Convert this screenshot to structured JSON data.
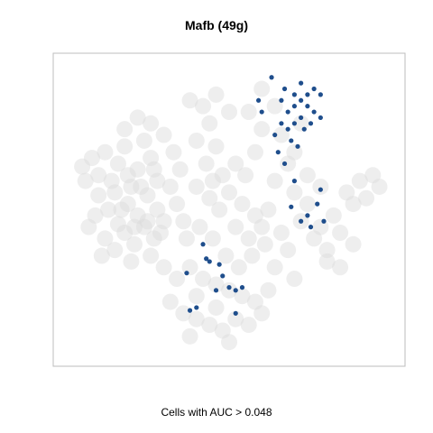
{
  "chart_data": {
    "type": "scatter",
    "title": "Mafb (49g)",
    "xlabel": "Cells with AUC > 0.048",
    "ylabel": "",
    "xlim": [
      0,
      1
    ],
    "ylim": [
      0,
      1
    ],
    "grid": false,
    "legend": "none",
    "colors": {
      "background_cells": "#d9d9d9",
      "highlight_cells": "#1f4e8c",
      "frame": "#bdbdbd"
    },
    "series": [
      {
        "role": "background",
        "points": [
          [
            0.05,
            0.65
          ],
          [
            0.08,
            0.68
          ],
          [
            0.1,
            0.62
          ],
          [
            0.12,
            0.7
          ],
          [
            0.14,
            0.6
          ],
          [
            0.16,
            0.66
          ],
          [
            0.18,
            0.72
          ],
          [
            0.2,
            0.58
          ],
          [
            0.22,
            0.64
          ],
          [
            0.24,
            0.74
          ],
          [
            0.26,
            0.68
          ],
          [
            0.28,
            0.6
          ],
          [
            0.1,
            0.55
          ],
          [
            0.13,
            0.5
          ],
          [
            0.16,
            0.45
          ],
          [
            0.19,
            0.52
          ],
          [
            0.22,
            0.48
          ],
          [
            0.25,
            0.55
          ],
          [
            0.28,
            0.5
          ],
          [
            0.12,
            0.4
          ],
          [
            0.15,
            0.36
          ],
          [
            0.18,
            0.42
          ],
          [
            0.21,
            0.38
          ],
          [
            0.24,
            0.44
          ],
          [
            0.27,
            0.4
          ],
          [
            0.3,
            0.46
          ],
          [
            0.18,
            0.78
          ],
          [
            0.22,
            0.82
          ],
          [
            0.26,
            0.8
          ],
          [
            0.3,
            0.76
          ],
          [
            0.33,
            0.7
          ],
          [
            0.35,
            0.64
          ],
          [
            0.32,
            0.58
          ],
          [
            0.34,
            0.52
          ],
          [
            0.36,
            0.46
          ],
          [
            0.38,
            0.88
          ],
          [
            0.42,
            0.86
          ],
          [
            0.46,
            0.9
          ],
          [
            0.5,
            0.84
          ],
          [
            0.44,
            0.8
          ],
          [
            0.4,
            0.74
          ],
          [
            0.46,
            0.72
          ],
          [
            0.43,
            0.66
          ],
          [
            0.45,
            0.6
          ],
          [
            0.44,
            0.54
          ],
          [
            0.47,
            0.5
          ],
          [
            0.5,
            0.56
          ],
          [
            0.54,
            0.52
          ],
          [
            0.58,
            0.48
          ],
          [
            0.52,
            0.44
          ],
          [
            0.56,
            0.4
          ],
          [
            0.6,
            0.44
          ],
          [
            0.62,
            0.5
          ],
          [
            0.55,
            0.62
          ],
          [
            0.58,
            0.7
          ],
          [
            0.6,
            0.78
          ],
          [
            0.56,
            0.84
          ],
          [
            0.6,
            0.92
          ],
          [
            0.64,
            0.86
          ],
          [
            0.66,
            0.76
          ],
          [
            0.68,
            0.66
          ],
          [
            0.64,
            0.6
          ],
          [
            0.7,
            0.56
          ],
          [
            0.74,
            0.52
          ],
          [
            0.72,
            0.46
          ],
          [
            0.76,
            0.4
          ],
          [
            0.8,
            0.36
          ],
          [
            0.78,
            0.44
          ],
          [
            0.82,
            0.48
          ],
          [
            0.84,
            0.42
          ],
          [
            0.8,
            0.32
          ],
          [
            0.84,
            0.3
          ],
          [
            0.88,
            0.38
          ],
          [
            0.86,
            0.56
          ],
          [
            0.9,
            0.6
          ],
          [
            0.94,
            0.62
          ],
          [
            0.96,
            0.58
          ],
          [
            0.92,
            0.54
          ],
          [
            0.88,
            0.52
          ],
          [
            0.3,
            0.3
          ],
          [
            0.34,
            0.26
          ],
          [
            0.38,
            0.3
          ],
          [
            0.42,
            0.26
          ],
          [
            0.46,
            0.24
          ],
          [
            0.5,
            0.22
          ],
          [
            0.54,
            0.2
          ],
          [
            0.58,
            0.18
          ],
          [
            0.32,
            0.18
          ],
          [
            0.36,
            0.14
          ],
          [
            0.4,
            0.12
          ],
          [
            0.44,
            0.1
          ],
          [
            0.48,
            0.08
          ],
          [
            0.52,
            0.12
          ],
          [
            0.56,
            0.1
          ],
          [
            0.6,
            0.14
          ],
          [
            0.62,
            0.22
          ],
          [
            0.4,
            0.2
          ],
          [
            0.46,
            0.16
          ],
          [
            0.38,
            0.06
          ],
          [
            0.5,
            0.04
          ],
          [
            0.06,
            0.6
          ],
          [
            0.09,
            0.48
          ],
          [
            0.07,
            0.44
          ],
          [
            0.11,
            0.34
          ],
          [
            0.2,
            0.32
          ],
          [
            0.26,
            0.34
          ],
          [
            0.64,
            0.3
          ],
          [
            0.68,
            0.36
          ],
          [
            0.7,
            0.26
          ],
          [
            0.74,
            0.62
          ],
          [
            0.78,
            0.58
          ],
          [
            0.7,
            0.7
          ],
          [
            0.72,
            0.8
          ],
          [
            0.52,
            0.66
          ],
          [
            0.48,
            0.62
          ],
          [
            0.4,
            0.58
          ],
          [
            0.37,
            0.4
          ],
          [
            0.41,
            0.44
          ],
          [
            0.45,
            0.4
          ],
          [
            0.49,
            0.34
          ],
          [
            0.53,
            0.3
          ],
          [
            0.57,
            0.34
          ],
          [
            0.61,
            0.38
          ],
          [
            0.66,
            0.42
          ],
          [
            0.15,
            0.56
          ],
          [
            0.19,
            0.62
          ],
          [
            0.23,
            0.58
          ],
          [
            0.27,
            0.64
          ],
          [
            0.17,
            0.5
          ],
          [
            0.21,
            0.44
          ],
          [
            0.25,
            0.46
          ],
          [
            0.29,
            0.42
          ]
        ]
      },
      {
        "role": "highlighted",
        "points": [
          [
            0.63,
            0.96
          ],
          [
            0.67,
            0.92
          ],
          [
            0.7,
            0.9
          ],
          [
            0.72,
            0.88
          ],
          [
            0.74,
            0.9
          ],
          [
            0.76,
            0.92
          ],
          [
            0.78,
            0.9
          ],
          [
            0.72,
            0.94
          ],
          [
            0.7,
            0.86
          ],
          [
            0.68,
            0.84
          ],
          [
            0.66,
            0.88
          ],
          [
            0.74,
            0.86
          ],
          [
            0.76,
            0.84
          ],
          [
            0.78,
            0.82
          ],
          [
            0.72,
            0.82
          ],
          [
            0.7,
            0.8
          ],
          [
            0.68,
            0.78
          ],
          [
            0.66,
            0.8
          ],
          [
            0.73,
            0.78
          ],
          [
            0.75,
            0.8
          ],
          [
            0.69,
            0.74
          ],
          [
            0.65,
            0.7
          ],
          [
            0.64,
            0.76
          ],
          [
            0.59,
            0.88
          ],
          [
            0.6,
            0.84
          ],
          [
            0.67,
            0.66
          ],
          [
            0.7,
            0.6
          ],
          [
            0.77,
            0.52
          ],
          [
            0.78,
            0.57
          ],
          [
            0.74,
            0.48
          ],
          [
            0.69,
            0.51
          ],
          [
            0.72,
            0.46
          ],
          [
            0.79,
            0.46
          ],
          [
            0.75,
            0.44
          ],
          [
            0.42,
            0.38
          ],
          [
            0.43,
            0.33
          ],
          [
            0.47,
            0.31
          ],
          [
            0.48,
            0.27
          ],
          [
            0.52,
            0.22
          ],
          [
            0.54,
            0.23
          ],
          [
            0.37,
            0.28
          ],
          [
            0.46,
            0.22
          ],
          [
            0.5,
            0.23
          ],
          [
            0.4,
            0.16
          ],
          [
            0.38,
            0.15
          ],
          [
            0.52,
            0.14
          ],
          [
            0.44,
            0.32
          ],
          [
            0.71,
            0.72
          ]
        ]
      }
    ]
  }
}
